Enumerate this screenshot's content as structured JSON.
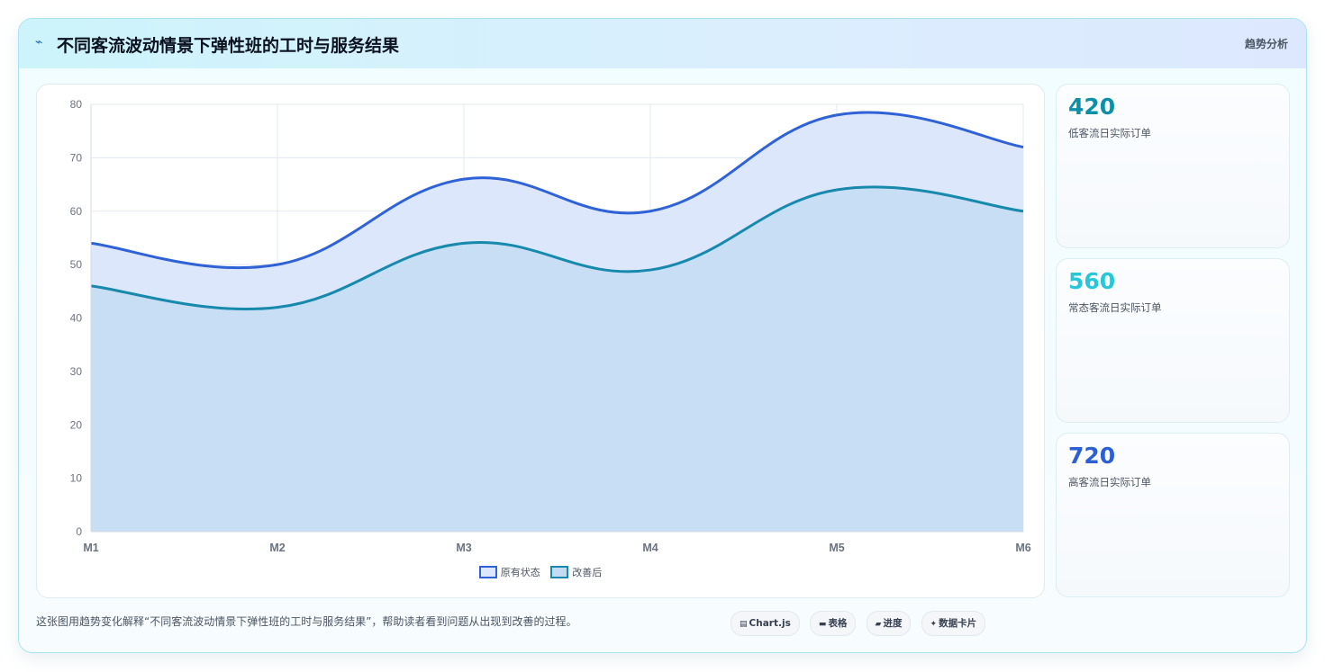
{
  "header": {
    "icon": "pulse-icon",
    "title": "不同客流波动情景下弹性班的工时与服务结果",
    "tag": "趋势分析"
  },
  "chart_data": {
    "type": "area",
    "categories": [
      "M1",
      "M2",
      "M3",
      "M4",
      "M5",
      "M6"
    ],
    "series": [
      {
        "name": "原有状态",
        "values": [
          54,
          50,
          66,
          60,
          78,
          72
        ],
        "color": "#2f62d6",
        "fill": "#dde7fb"
      },
      {
        "name": "改善后",
        "values": [
          46,
          42,
          54,
          49,
          64,
          60
        ],
        "color": "#1789ad",
        "fill": "#c4dcf2"
      }
    ],
    "ylim": [
      0,
      80
    ],
    "yticks": [
      0,
      10,
      20,
      30,
      40,
      50,
      60,
      70,
      80
    ],
    "grid": true,
    "legend_position": "bottom"
  },
  "kpis": [
    {
      "value": "420",
      "label": "低客流日实际订单",
      "color": "#0e8fa8"
    },
    {
      "value": "560",
      "label": "常态客流日实际订单",
      "color": "#27c6db"
    },
    {
      "value": "720",
      "label": "高客流日实际订单",
      "color": "#2c5fd0"
    }
  ],
  "caption": "这张图用趋势变化解释“不同客流波动情景下弹性班的工时与服务结果”，帮助读者看到问题从出现到改善的过程。",
  "chips": [
    {
      "icon": "chart-icon",
      "glyph": "▤",
      "label": "Chart.js"
    },
    {
      "icon": "table-icon",
      "glyph": "▬",
      "label": "表格"
    },
    {
      "icon": "progress-icon",
      "glyph": "▰",
      "label": "进度"
    },
    {
      "icon": "card-icon",
      "glyph": "✦",
      "label": "数据卡片"
    }
  ]
}
